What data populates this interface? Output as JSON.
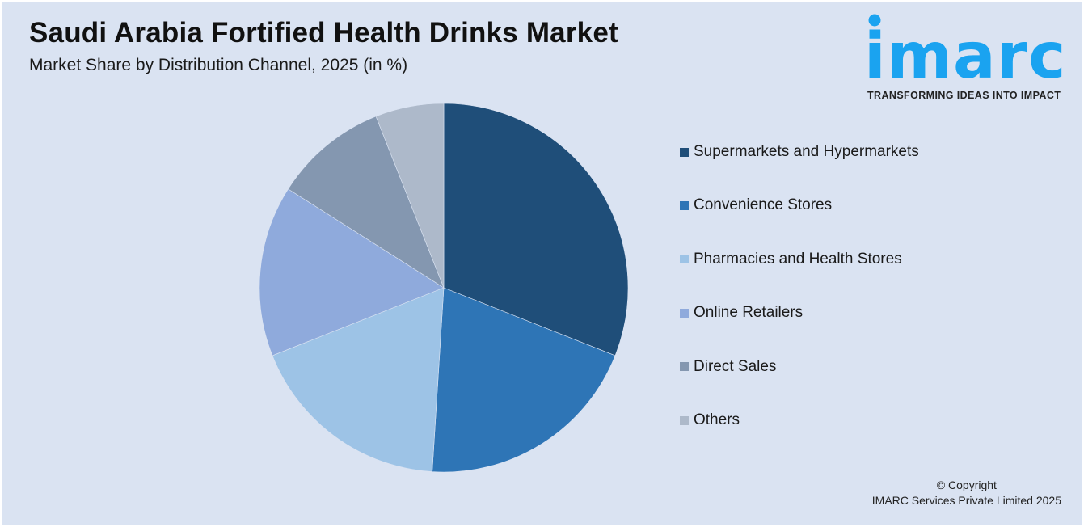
{
  "header": {
    "title": "Saudi Arabia Fortified Health Drinks Market",
    "subtitle": "Market Share by Distribution Channel, 2025 (in %)"
  },
  "logo": {
    "word": "imarc",
    "tagline": "TRANSFORMING IDEAS INTO IMPACT",
    "color": "#1aa3f0"
  },
  "footer": {
    "line1": "© Copyright",
    "line2": "IMARC Services Private Limited 2025"
  },
  "chart_data": {
    "type": "pie",
    "title": "Saudi Arabia Fortified Health Drinks Market",
    "subtitle": "Market Share by Distribution Channel, 2025 (in %)",
    "categories": [
      "Supermarkets and Hypermarkets",
      "Convenience Stores",
      "Pharmacies and Health Stores",
      "Online Retailers",
      "Direct Sales",
      "Others"
    ],
    "values": [
      31,
      20,
      18,
      15,
      10,
      6
    ],
    "colors": [
      "#1f4e79",
      "#2e75b6",
      "#9dc3e6",
      "#8faadc",
      "#8497b0",
      "#adb9ca"
    ],
    "start_angle": "12 o'clock, clockwise",
    "legend_position": "right",
    "data_labels": false
  }
}
